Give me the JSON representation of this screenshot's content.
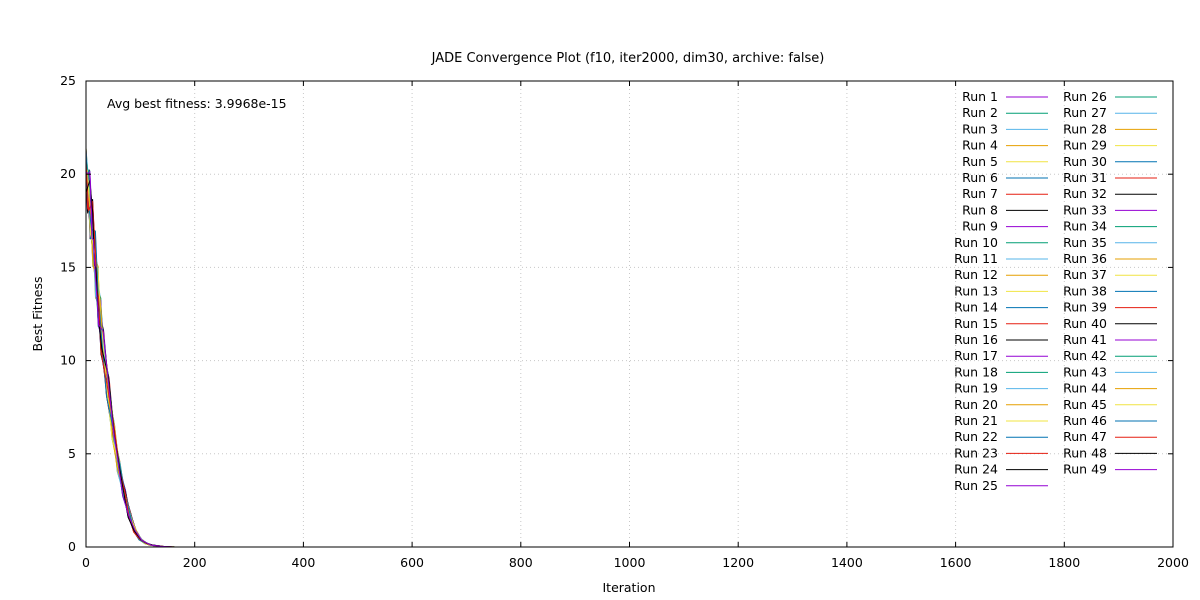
{
  "chart_data": {
    "type": "line",
    "title": "JADE Convergence Plot (f10, iter2000, dim30, archive: false)",
    "xlabel": "Iteration",
    "ylabel": "Best Fitness",
    "xlim": [
      0,
      2000
    ],
    "ylim": [
      0,
      25
    ],
    "xticks": [
      0,
      200,
      400,
      600,
      800,
      1000,
      1200,
      1400,
      1600,
      1800,
      2000
    ],
    "yticks": [
      0,
      5,
      10,
      15,
      20,
      25
    ],
    "grid": true,
    "legend_position": "top-right",
    "annotation": "Avg best fitness: 3.9968e-15",
    "palette": [
      "#9400d3",
      "#009e73",
      "#56b4e9",
      "#e69f00",
      "#f0e442",
      "#0072b2",
      "#e51e10",
      "#000000"
    ],
    "series_shape": {
      "x": [
        0,
        5,
        10,
        15,
        20,
        25,
        30,
        40,
        50,
        60,
        70,
        80,
        90,
        100,
        110,
        120,
        140,
        160,
        180,
        200,
        300,
        500,
        1000,
        2000
      ],
      "y": [
        20.2,
        19.1,
        17.6,
        16.0,
        14.2,
        12.6,
        11.0,
        8.6,
        6.2,
        4.3,
        2.9,
        1.7,
        0.85,
        0.4,
        0.2,
        0.1,
        0.03,
        0.008,
        0.002,
        0.0005,
        0,
        0,
        0,
        0
      ]
    },
    "series": [
      {
        "name": "Run 1"
      },
      {
        "name": "Run 2"
      },
      {
        "name": "Run 3"
      },
      {
        "name": "Run 4"
      },
      {
        "name": "Run 5"
      },
      {
        "name": "Run 6"
      },
      {
        "name": "Run 7"
      },
      {
        "name": "Run 8"
      },
      {
        "name": "Run 9"
      },
      {
        "name": "Run 10"
      },
      {
        "name": "Run 11"
      },
      {
        "name": "Run 12"
      },
      {
        "name": "Run 13"
      },
      {
        "name": "Run 14"
      },
      {
        "name": "Run 15"
      },
      {
        "name": "Run 16"
      },
      {
        "name": "Run 17"
      },
      {
        "name": "Run 18"
      },
      {
        "name": "Run 19"
      },
      {
        "name": "Run 20"
      },
      {
        "name": "Run 21"
      },
      {
        "name": "Run 22"
      },
      {
        "name": "Run 23"
      },
      {
        "name": "Run 24"
      },
      {
        "name": "Run 25"
      },
      {
        "name": "Run 26"
      },
      {
        "name": "Run 27"
      },
      {
        "name": "Run 28"
      },
      {
        "name": "Run 29"
      },
      {
        "name": "Run 30"
      },
      {
        "name": "Run 31"
      },
      {
        "name": "Run 32"
      },
      {
        "name": "Run 33"
      },
      {
        "name": "Run 34"
      },
      {
        "name": "Run 35"
      },
      {
        "name": "Run 36"
      },
      {
        "name": "Run 37"
      },
      {
        "name": "Run 38"
      },
      {
        "name": "Run 39"
      },
      {
        "name": "Run 40"
      },
      {
        "name": "Run 41"
      },
      {
        "name": "Run 42"
      },
      {
        "name": "Run 43"
      },
      {
        "name": "Run 44"
      },
      {
        "name": "Run 45"
      },
      {
        "name": "Run 46"
      },
      {
        "name": "Run 47"
      },
      {
        "name": "Run 48"
      },
      {
        "name": "Run 49"
      }
    ]
  }
}
